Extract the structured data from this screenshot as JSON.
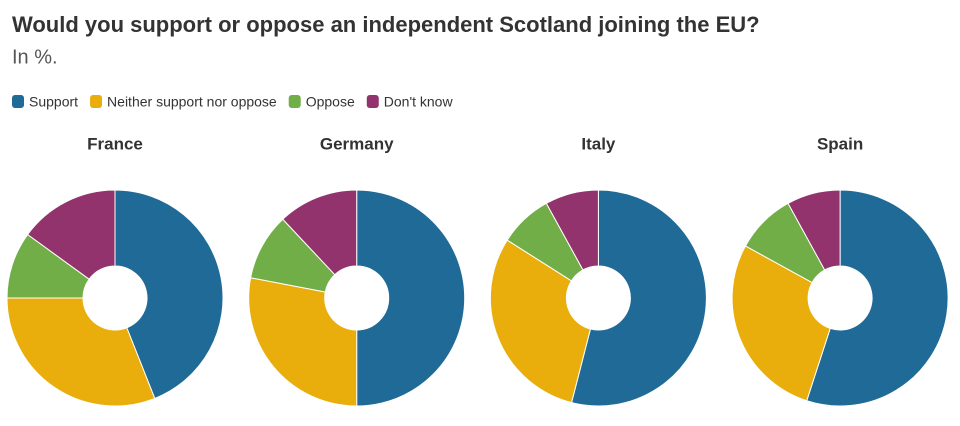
{
  "header": {
    "title": "Would you support or oppose an independent Scotland joining the EU?",
    "subtitle": "In %."
  },
  "chart_data": [
    {
      "type": "pie",
      "title": "France",
      "categories": [
        "Support",
        "Neither support nor oppose",
        "Oppose",
        "Don't know"
      ],
      "colors": [
        "#1f6a97",
        "#e9ad0c",
        "#72ae48",
        "#92336d"
      ],
      "values": [
        44,
        31,
        10,
        15
      ]
    },
    {
      "type": "pie",
      "title": "Germany",
      "categories": [
        "Support",
        "Neither support nor oppose",
        "Oppose",
        "Don't know"
      ],
      "colors": [
        "#1f6a97",
        "#e9ad0c",
        "#72ae48",
        "#92336d"
      ],
      "values": [
        50,
        28,
        10,
        12
      ]
    },
    {
      "type": "pie",
      "title": "Italy",
      "categories": [
        "Support",
        "Neither support nor oppose",
        "Oppose",
        "Don't know"
      ],
      "colors": [
        "#1f6a97",
        "#e9ad0c",
        "#72ae48",
        "#92336d"
      ],
      "values": [
        54,
        30,
        8,
        8
      ]
    },
    {
      "type": "pie",
      "title": "Spain",
      "categories": [
        "Support",
        "Neither support nor oppose",
        "Oppose",
        "Don't know"
      ],
      "colors": [
        "#1f6a97",
        "#e9ad0c",
        "#72ae48",
        "#92336d"
      ],
      "values": [
        55,
        28,
        9,
        8
      ]
    }
  ]
}
